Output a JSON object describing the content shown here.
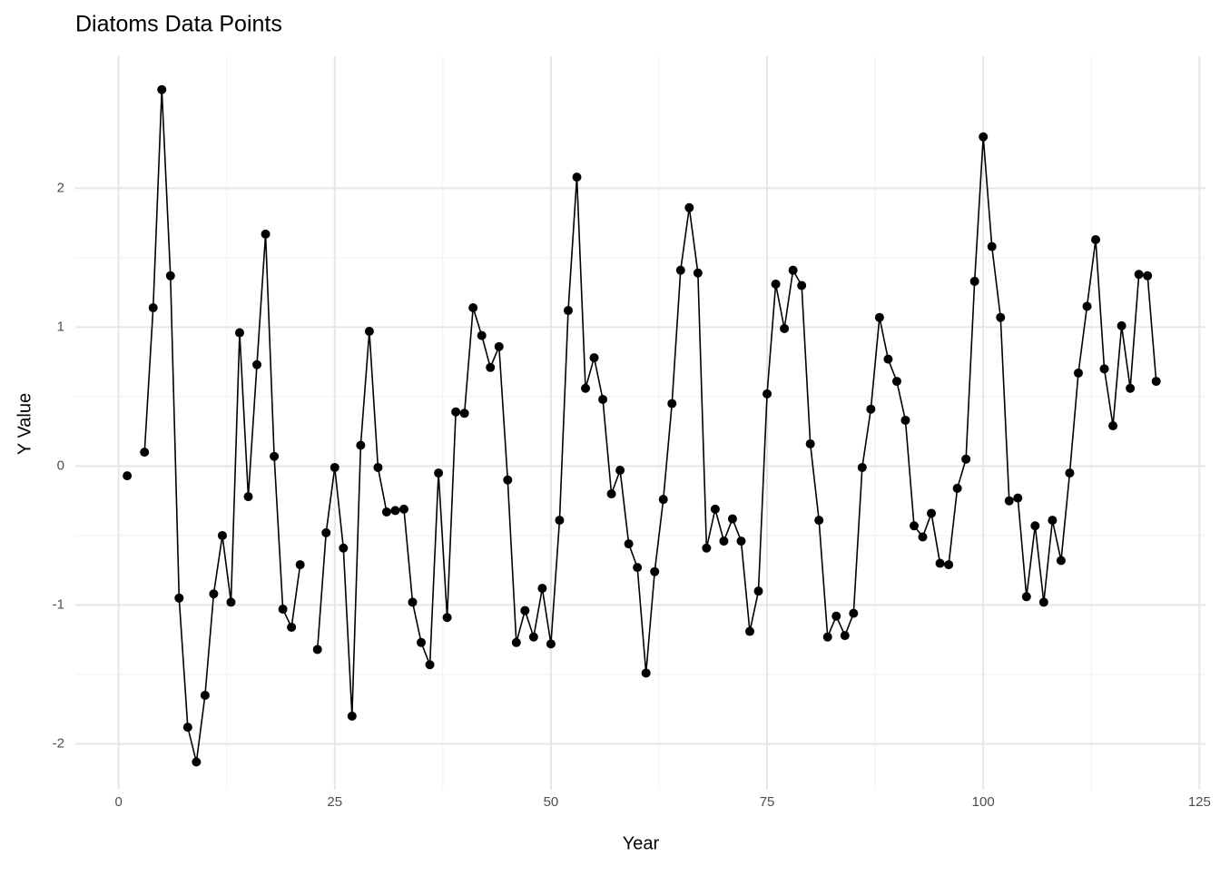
{
  "chart_data": {
    "type": "line",
    "title": "Diatoms Data Points",
    "x_label": "Year",
    "y_label": "Y Value",
    "x": [
      1,
      2,
      3,
      4,
      5,
      6,
      7,
      8,
      9,
      10,
      11,
      12,
      13,
      14,
      15,
      16,
      17,
      18,
      19,
      20,
      21,
      22,
      23,
      24,
      25,
      26,
      27,
      28,
      29,
      30,
      31,
      32,
      33,
      34,
      35,
      36,
      37,
      38,
      39,
      40,
      41,
      42,
      43,
      44,
      45,
      46,
      47,
      48,
      49,
      50,
      51,
      52,
      53,
      54,
      55,
      56,
      57,
      58,
      59,
      60,
      61,
      62,
      63,
      64,
      65,
      66,
      67,
      68,
      69,
      70,
      71,
      72,
      73,
      74,
      75,
      76,
      77,
      78,
      79,
      80,
      81,
      82,
      83,
      84,
      85,
      86,
      87,
      88,
      89,
      90,
      91,
      92,
      93,
      94,
      95,
      96,
      97,
      98,
      99,
      100,
      101,
      102,
      103,
      104,
      105,
      106,
      107,
      108,
      109,
      110,
      111,
      112,
      113,
      114,
      115,
      116,
      117,
      118,
      119,
      120
    ],
    "values": [
      -0.07,
      null,
      0.1,
      1.14,
      2.71,
      1.37,
      -0.95,
      -1.88,
      -2.13,
      -1.65,
      -0.92,
      -0.5,
      -0.98,
      0.96,
      -0.22,
      0.73,
      1.67,
      0.07,
      -1.03,
      -1.16,
      -0.71,
      null,
      -1.32,
      -0.48,
      -0.01,
      -0.59,
      -1.8,
      0.15,
      0.97,
      -0.01,
      -0.33,
      -0.32,
      -0.31,
      -0.98,
      -1.27,
      -1.43,
      -0.05,
      -1.09,
      0.39,
      0.38,
      1.14,
      0.94,
      0.71,
      0.86,
      -0.1,
      -1.27,
      -1.04,
      -1.23,
      -0.88,
      -1.28,
      -0.39,
      1.12,
      2.08,
      0.56,
      0.78,
      0.48,
      -0.2,
      -0.03,
      -0.56,
      -0.73,
      -1.49,
      -0.76,
      -0.24,
      0.45,
      1.41,
      1.86,
      1.39,
      -0.59,
      -0.31,
      -0.54,
      -0.38,
      -0.54,
      -1.19,
      -0.9,
      0.52,
      1.31,
      0.99,
      1.41,
      1.3,
      0.16,
      -0.39,
      -1.23,
      -1.08,
      -1.22,
      -1.06,
      -0.01,
      0.41,
      1.07,
      0.77,
      0.61,
      0.33,
      -0.43,
      -0.51,
      -0.34,
      -0.7,
      -0.71,
      -0.16,
      0.05,
      1.33,
      2.37,
      1.58,
      1.07,
      -0.25,
      -0.23,
      -0.94,
      -0.43,
      -0.98,
      -0.39,
      -0.68,
      -0.05,
      0.67,
      1.15,
      1.63,
      0.7,
      0.29,
      1.01,
      0.56,
      1.38,
      1.37,
      0.61
    ],
    "color": "#000000",
    "xlim": [
      -5,
      125.7
    ],
    "ylim": [
      -2.33,
      2.95
    ],
    "xticks": [
      0,
      25,
      50,
      75,
      100,
      125
    ],
    "yticks": [
      -2,
      -1,
      0,
      1,
      2
    ],
    "grid": true
  }
}
